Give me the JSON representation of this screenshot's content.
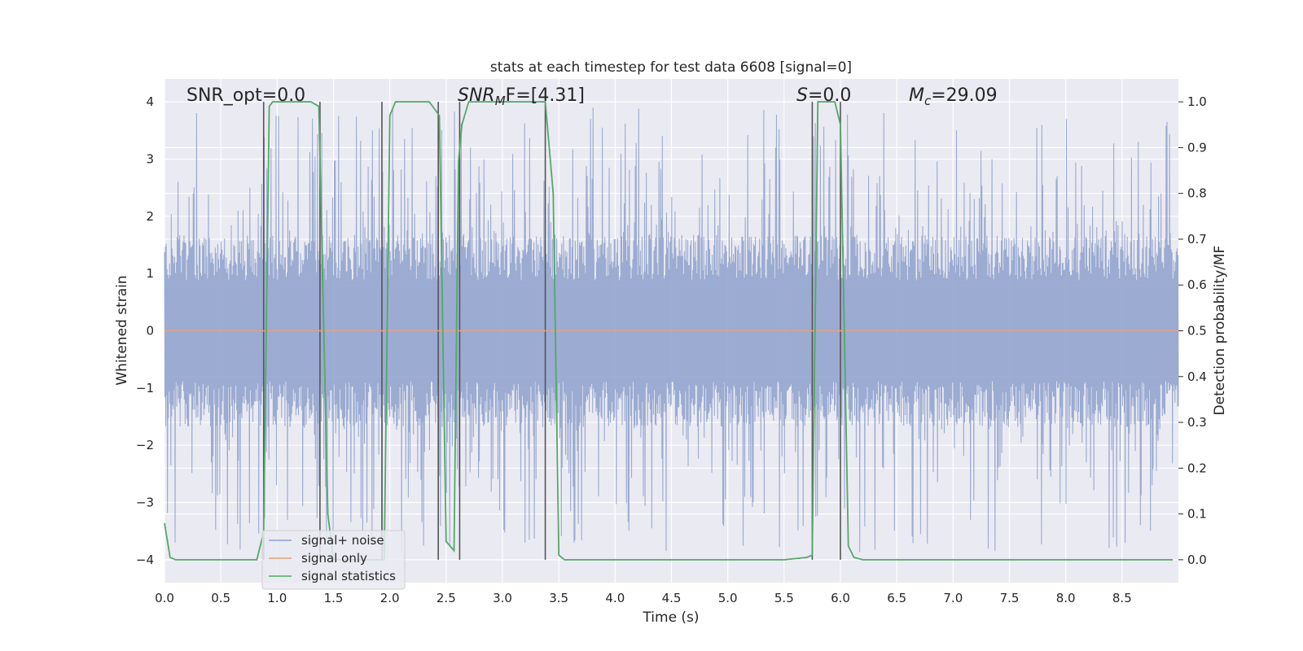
{
  "chart_data": {
    "type": "line",
    "title": "stats at each timestep for test data 6608 [signal=0]",
    "xlabel": "Time (s)",
    "ylabel_left": "Whitened strain",
    "ylabel_right": "Detection probability/MF",
    "xlim": [
      0,
      9.0
    ],
    "ylim_left": [
      -4.4,
      4.4
    ],
    "ylim_right": [
      -0.05,
      1.05
    ],
    "x_ticks": [
      0.0,
      0.5,
      1.0,
      1.5,
      2.0,
      2.5,
      3.0,
      3.5,
      4.0,
      4.5,
      5.0,
      5.5,
      6.0,
      6.5,
      7.0,
      7.5,
      8.0,
      8.5
    ],
    "x_tick_labels": [
      "0.0",
      "0.5",
      "1.0",
      "1.5",
      "2.0",
      "2.5",
      "3.0",
      "3.5",
      "4.0",
      "4.5",
      "5.0",
      "5.5",
      "6.0",
      "6.5",
      "7.0",
      "7.5",
      "8.0",
      "8.5"
    ],
    "y_left_ticks": [
      -4,
      -3,
      -2,
      -1,
      0,
      1,
      2,
      3,
      4
    ],
    "y_left_tick_labels": [
      "−4",
      "−3",
      "−2",
      "−1",
      "0",
      "1",
      "2",
      "3",
      "4"
    ],
    "y_right_ticks": [
      0.0,
      0.1,
      0.2,
      0.3,
      0.4,
      0.5,
      0.6,
      0.7,
      0.8,
      0.9,
      1.0
    ],
    "y_right_tick_labels": [
      "0.0",
      "0.1",
      "0.2",
      "0.3",
      "0.4",
      "0.5",
      "0.6",
      "0.7",
      "0.8",
      "0.9",
      "1.0"
    ],
    "grid": true,
    "legend_position": "lower-left",
    "annotations": {
      "snr_opt": "SNR_opt=0.0",
      "snr_mf_main": "SNR",
      "snr_mf_sub": "M",
      "snr_mf_tail": "F=[4.31]",
      "s_main": "S",
      "s_tail": "=0.0",
      "mc_main": "M",
      "mc_sub": "c",
      "mc_tail": "=29.09"
    },
    "series": [
      {
        "name": "signal+ noise",
        "axis": "left",
        "style": "noise",
        "color": "#8da0cb",
        "x_range": [
          0,
          9.0
        ],
        "core_amplitude": 1.6,
        "peak_amplitude_max": 3.9
      },
      {
        "name": "signal only",
        "axis": "left",
        "style": "line",
        "color": "#e8a07f",
        "x": [
          0,
          9.0
        ],
        "y": [
          0,
          0
        ]
      },
      {
        "name": "signal statistics",
        "axis": "right",
        "style": "line",
        "color": "#55a868",
        "x": [
          0.0,
          0.05,
          0.1,
          0.2,
          0.3,
          0.5,
          0.7,
          0.82,
          0.88,
          0.93,
          0.96,
          1.0,
          1.1,
          1.2,
          1.3,
          1.37,
          1.45,
          1.5,
          1.55,
          1.6,
          1.7,
          1.8,
          1.9,
          1.95,
          2.0,
          2.05,
          2.2,
          2.35,
          2.44,
          2.5,
          2.57,
          2.61,
          2.64,
          2.7,
          2.8,
          3.0,
          3.2,
          3.38,
          3.45,
          3.5,
          3.55,
          3.7,
          4.0,
          4.5,
          5.0,
          5.5,
          5.7,
          5.75,
          5.8,
          5.85,
          5.95,
          6.0,
          6.07,
          6.12,
          6.2,
          6.5,
          7.0,
          7.5,
          8.0,
          8.5,
          8.95
        ],
        "y": [
          0.08,
          0.005,
          0.0,
          0.0,
          0.0,
          0.0,
          0.0,
          0.0,
          0.06,
          0.99,
          1.0,
          1.0,
          1.0,
          1.0,
          1.0,
          0.99,
          0.1,
          0.0,
          0.0,
          0.0,
          0.0,
          0.0,
          0.0,
          0.0,
          0.97,
          1.0,
          1.0,
          1.0,
          0.97,
          0.04,
          0.02,
          0.87,
          0.95,
          1.0,
          1.0,
          1.0,
          1.0,
          1.0,
          0.8,
          0.01,
          0.0,
          0.0,
          0.0,
          0.0,
          0.0,
          0.0,
          0.005,
          0.01,
          1.0,
          1.0,
          1.0,
          0.95,
          0.03,
          0.005,
          0.0,
          0.0,
          0.0,
          0.0,
          0.0,
          0.0,
          0.0
        ]
      }
    ],
    "vertical_lines_x": [
      0.88,
      1.38,
      1.93,
      2.43,
      2.62,
      3.38,
      5.75,
      6.0
    ]
  }
}
